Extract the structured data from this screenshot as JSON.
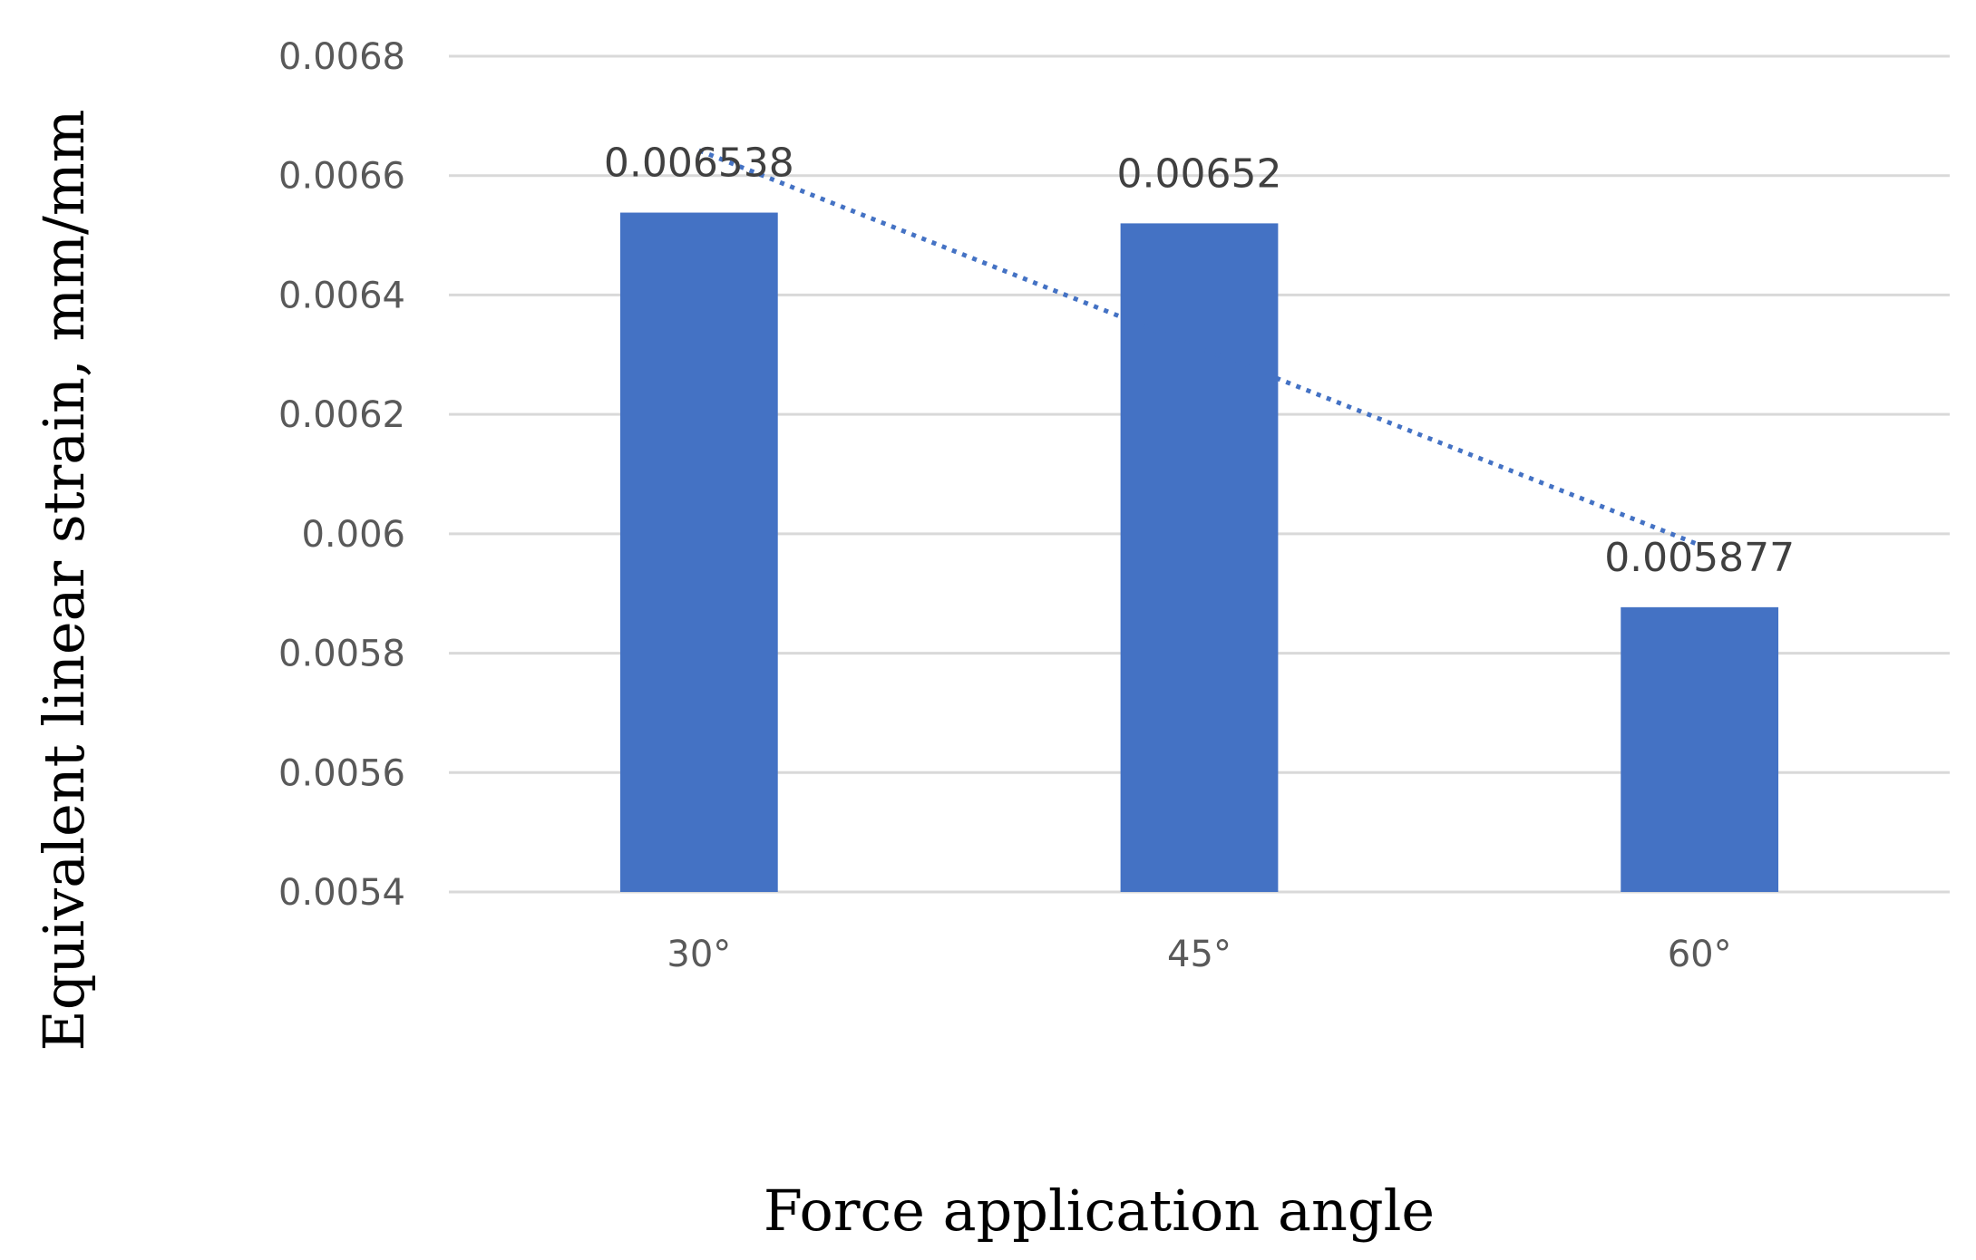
{
  "chart_data": {
    "type": "bar",
    "categories": [
      "30°",
      "45°",
      "60°"
    ],
    "series": [
      {
        "values": [
          0.006538,
          0.00652,
          0.005877
        ],
        "data_labels": [
          "0.006538",
          "0.00652",
          "0.005877"
        ]
      }
    ],
    "trendline": {
      "type": "linear",
      "style": "dotted"
    },
    "xlabel": "Force application angle",
    "ylabel": "Equivalent linear strain, mm/mm",
    "ylim": [
      0.0054,
      0.0068
    ],
    "yticks": [
      0.0054,
      0.0056,
      0.0058,
      0.006,
      0.0062,
      0.0064,
      0.0066,
      0.0068
    ],
    "ytick_labels": [
      "0.0054",
      "0.0056",
      "0.0058",
      "0.006",
      "0.0062",
      "0.0064",
      "0.0066",
      "0.0068"
    ],
    "grid": true,
    "legend": "none",
    "colors": {
      "bar": "#4472c4",
      "trendline": "#4472c4",
      "grid": "#d9d9d9",
      "tick_text": "#595959",
      "label_text": "#404040"
    }
  }
}
